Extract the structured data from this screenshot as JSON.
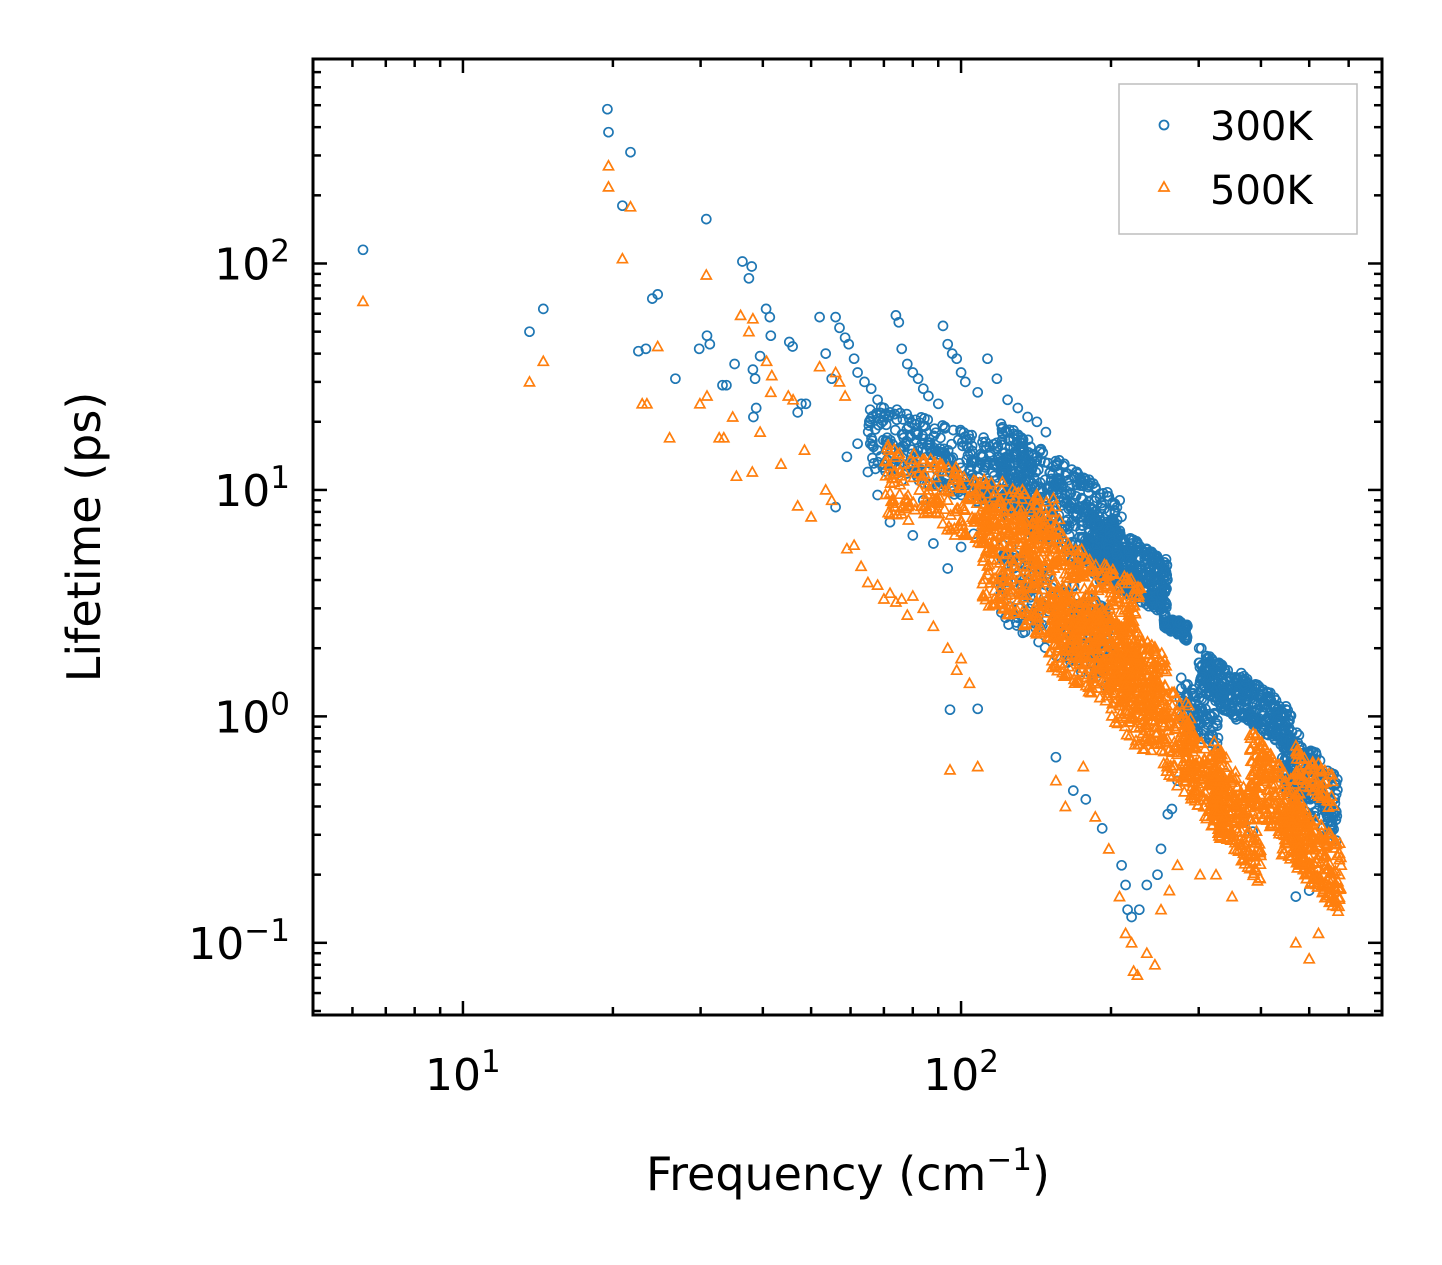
{
  "chart_data": {
    "type": "scatter",
    "title": "",
    "xlabel": "Frequency (cm",
    "xlabel_sup": "−1",
    "xlabel_end": ")",
    "ylabel": "Lifetime (ps)",
    "xscale": "log",
    "yscale": "log",
    "xlim": [
      5,
      700
    ],
    "ylim": [
      0.048,
      800
    ],
    "x_tick_labels": [
      {
        "base": "10",
        "exp": "1",
        "value": 10
      },
      {
        "base": "10",
        "exp": "2",
        "value": 100
      }
    ],
    "y_tick_labels": [
      {
        "base": "10",
        "exp": "−1",
        "value": 0.1
      },
      {
        "base": "10",
        "exp": "0",
        "value": 1
      },
      {
        "base": "10",
        "exp": "1",
        "value": 10
      },
      {
        "base": "10",
        "exp": "2",
        "value": 100
      }
    ],
    "legend_position": "top-right",
    "series": [
      {
        "name": "300K",
        "marker": "circle",
        "color": "#1f77b4",
        "points": [
          [
            6.3,
            115
          ],
          [
            13.6,
            50
          ],
          [
            14.5,
            63
          ],
          [
            19.5,
            480
          ],
          [
            19.6,
            380
          ],
          [
            20.9,
            180
          ],
          [
            21.7,
            310
          ],
          [
            22.5,
            41
          ],
          [
            23.3,
            42
          ],
          [
            24,
            70
          ],
          [
            24.6,
            73
          ],
          [
            26.7,
            31
          ],
          [
            29.8,
            42
          ],
          [
            30.8,
            157
          ],
          [
            30.9,
            48
          ],
          [
            31.3,
            44
          ],
          [
            33.2,
            29
          ],
          [
            33.8,
            29
          ],
          [
            35.1,
            36
          ],
          [
            36.4,
            102
          ],
          [
            37.5,
            86
          ],
          [
            38,
            97
          ],
          [
            38.2,
            34
          ],
          [
            38.6,
            31
          ],
          [
            38.8,
            23
          ],
          [
            38.3,
            21
          ],
          [
            39.5,
            39
          ],
          [
            40.6,
            63
          ],
          [
            41.3,
            58
          ],
          [
            41.5,
            48
          ],
          [
            45.2,
            45
          ],
          [
            45.9,
            43
          ],
          [
            47,
            22
          ],
          [
            47.8,
            24
          ],
          [
            48.8,
            24
          ],
          [
            52,
            58
          ],
          [
            53.5,
            40
          ],
          [
            55,
            31
          ],
          [
            56,
            58
          ],
          [
            57,
            52
          ],
          [
            58.5,
            47
          ],
          [
            59.5,
            44
          ],
          [
            61,
            38
          ],
          [
            62,
            33
          ],
          [
            64,
            30
          ],
          [
            66,
            28
          ],
          [
            68,
            25
          ],
          [
            70,
            23
          ],
          [
            72,
            22
          ],
          [
            74,
            59
          ],
          [
            75,
            55
          ],
          [
            76,
            42
          ],
          [
            78,
            36
          ],
          [
            80,
            33
          ],
          [
            82,
            31
          ],
          [
            84,
            28
          ],
          [
            86,
            26
          ],
          [
            90,
            24
          ],
          [
            92,
            53
          ],
          [
            94,
            44
          ],
          [
            96,
            40
          ],
          [
            98,
            38
          ],
          [
            100,
            33
          ],
          [
            102,
            30
          ],
          [
            108,
            27
          ],
          [
            113,
            38
          ],
          [
            118,
            31
          ],
          [
            124,
            25
          ],
          [
            130,
            23
          ],
          [
            136,
            21
          ],
          [
            142,
            20
          ],
          [
            148,
            18
          ],
          [
            56,
            8.4
          ],
          [
            59,
            14
          ],
          [
            62,
            16
          ],
          [
            65,
            12
          ],
          [
            68,
            9.5
          ],
          [
            72,
            7.2
          ],
          [
            76,
            11
          ],
          [
            80,
            6.3
          ],
          [
            84,
            9
          ],
          [
            88,
            5.8
          ],
          [
            94,
            4.5
          ],
          [
            100,
            5.6
          ],
          [
            106,
            6.4
          ],
          [
            95,
            1.07
          ],
          [
            108,
            1.08
          ],
          [
            155,
            0.66
          ],
          [
            168,
            0.47
          ],
          [
            178,
            0.43
          ],
          [
            192,
            0.32
          ],
          [
            210,
            0.22
          ],
          [
            214,
            0.18
          ],
          [
            216,
            0.14
          ],
          [
            220,
            0.13
          ],
          [
            228,
            0.14
          ],
          [
            236,
            0.18
          ],
          [
            248,
            0.2
          ],
          [
            252,
            0.26
          ],
          [
            260,
            0.37
          ],
          [
            265,
            0.39
          ],
          [
            272,
            0.52
          ],
          [
            340,
            0.56
          ],
          [
            370,
            0.34
          ],
          [
            385,
            0.31
          ],
          [
            470,
            0.16
          ],
          [
            500,
            0.17
          ]
        ],
        "clusters": [
          {
            "x": [
              65,
              145
            ],
            "y": [
              8,
              25
            ],
            "n": 380
          },
          {
            "x": [
              120,
              210
            ],
            "y": [
              4,
              20
            ],
            "n": 480
          },
          {
            "x": [
              180,
              260
            ],
            "y": [
              3,
              8
            ],
            "n": 420
          },
          {
            "x": [
              255,
              285
            ],
            "y": [
              2.2,
              2.9
            ],
            "n": 80
          },
          {
            "x": [
              300,
              360
            ],
            "y": [
              1.0,
              2.1
            ],
            "n": 160
          },
          {
            "x": [
              360,
              460
            ],
            "y": [
              0.75,
              1.6
            ],
            "n": 200
          },
          {
            "x": [
              440,
              570
            ],
            "y": [
              0.3,
              1.0
            ],
            "n": 220
          },
          {
            "x": [
              120,
              200
            ],
            "y": [
              1.5,
              6
            ],
            "n": 200
          },
          {
            "x": [
              275,
              330
            ],
            "y": [
              0.7,
              1.5
            ],
            "n": 90
          }
        ]
      },
      {
        "name": "500K",
        "marker": "triangle",
        "color": "#ff7f0e",
        "points": [
          [
            6.3,
            68
          ],
          [
            13.6,
            30
          ],
          [
            14.5,
            37
          ],
          [
            19.6,
            270
          ],
          [
            19.6,
            218
          ],
          [
            20.9,
            105
          ],
          [
            21.7,
            178
          ],
          [
            22.9,
            24
          ],
          [
            23.4,
            24
          ],
          [
            24.6,
            43
          ],
          [
            26,
            17
          ],
          [
            29.9,
            24
          ],
          [
            30.8,
            89
          ],
          [
            30.9,
            26
          ],
          [
            32.7,
            17
          ],
          [
            33.4,
            17
          ],
          [
            34.8,
            21
          ],
          [
            35.4,
            11.5
          ],
          [
            36.1,
            59
          ],
          [
            37.5,
            50
          ],
          [
            38.2,
            57
          ],
          [
            38.1,
            12
          ],
          [
            39.5,
            18
          ],
          [
            40.7,
            37
          ],
          [
            41.7,
            32
          ],
          [
            41.5,
            27
          ],
          [
            43.5,
            13
          ],
          [
            45,
            26
          ],
          [
            46,
            25
          ],
          [
            47,
            8.5
          ],
          [
            48.5,
            15
          ],
          [
            50,
            7.6
          ],
          [
            52,
            35
          ],
          [
            53.5,
            10
          ],
          [
            55,
            9
          ],
          [
            56,
            33
          ],
          [
            57,
            30
          ],
          [
            58.5,
            26
          ],
          [
            59,
            5.5
          ],
          [
            61,
            5.7
          ],
          [
            63,
            4.6
          ],
          [
            65,
            3.9
          ],
          [
            68,
            3.8
          ],
          [
            70,
            3.3
          ],
          [
            72,
            3.5
          ],
          [
            74,
            3.2
          ],
          [
            76,
            3.3
          ],
          [
            78,
            2.8
          ],
          [
            80,
            3.4
          ],
          [
            84,
            3
          ],
          [
            88,
            2.5
          ],
          [
            94,
            2
          ],
          [
            98,
            1.6
          ],
          [
            100,
            1.8
          ],
          [
            104,
            1.4
          ],
          [
            95,
            0.58
          ],
          [
            108,
            0.6
          ],
          [
            155,
            0.52
          ],
          [
            162,
            0.4
          ],
          [
            176,
            0.6
          ],
          [
            186,
            0.36
          ],
          [
            198,
            0.26
          ],
          [
            208,
            0.16
          ],
          [
            214,
            0.11
          ],
          [
            220,
            0.1
          ],
          [
            222,
            0.075
          ],
          [
            226,
            0.072
          ],
          [
            236,
            0.09
          ],
          [
            245,
            0.08
          ],
          [
            252,
            0.14
          ],
          [
            262,
            0.17
          ],
          [
            272,
            0.22
          ],
          [
            302,
            0.2
          ],
          [
            325,
            0.2
          ],
          [
            350,
            0.16
          ],
          [
            470,
            0.1
          ],
          [
            500,
            0.085
          ],
          [
            522,
            0.11
          ]
        ],
        "clusters": [
          {
            "x": [
              70,
              160
            ],
            "y": [
              5,
              16
            ],
            "n": 300
          },
          {
            "x": [
              110,
              230
            ],
            "y": [
              1.5,
              10
            ],
            "n": 560
          },
          {
            "x": [
              150,
              260
            ],
            "y": [
              0.9,
              4
            ],
            "n": 400
          },
          {
            "x": [
              200,
              290
            ],
            "y": [
              0.5,
              2.5
            ],
            "n": 250
          },
          {
            "x": [
              280,
              340
            ],
            "y": [
              0.3,
              1.0
            ],
            "n": 170
          },
          {
            "x": [
              320,
              400
            ],
            "y": [
              0.2,
              0.8
            ],
            "n": 200
          },
          {
            "x": [
              380,
              480
            ],
            "y": [
              0.25,
              0.9
            ],
            "n": 200
          },
          {
            "x": [
              440,
              580
            ],
            "y": [
              0.15,
              0.5
            ],
            "n": 220
          },
          {
            "x": [
              470,
              560
            ],
            "y": [
              0.4,
              0.75
            ],
            "n": 60
          }
        ]
      }
    ]
  }
}
